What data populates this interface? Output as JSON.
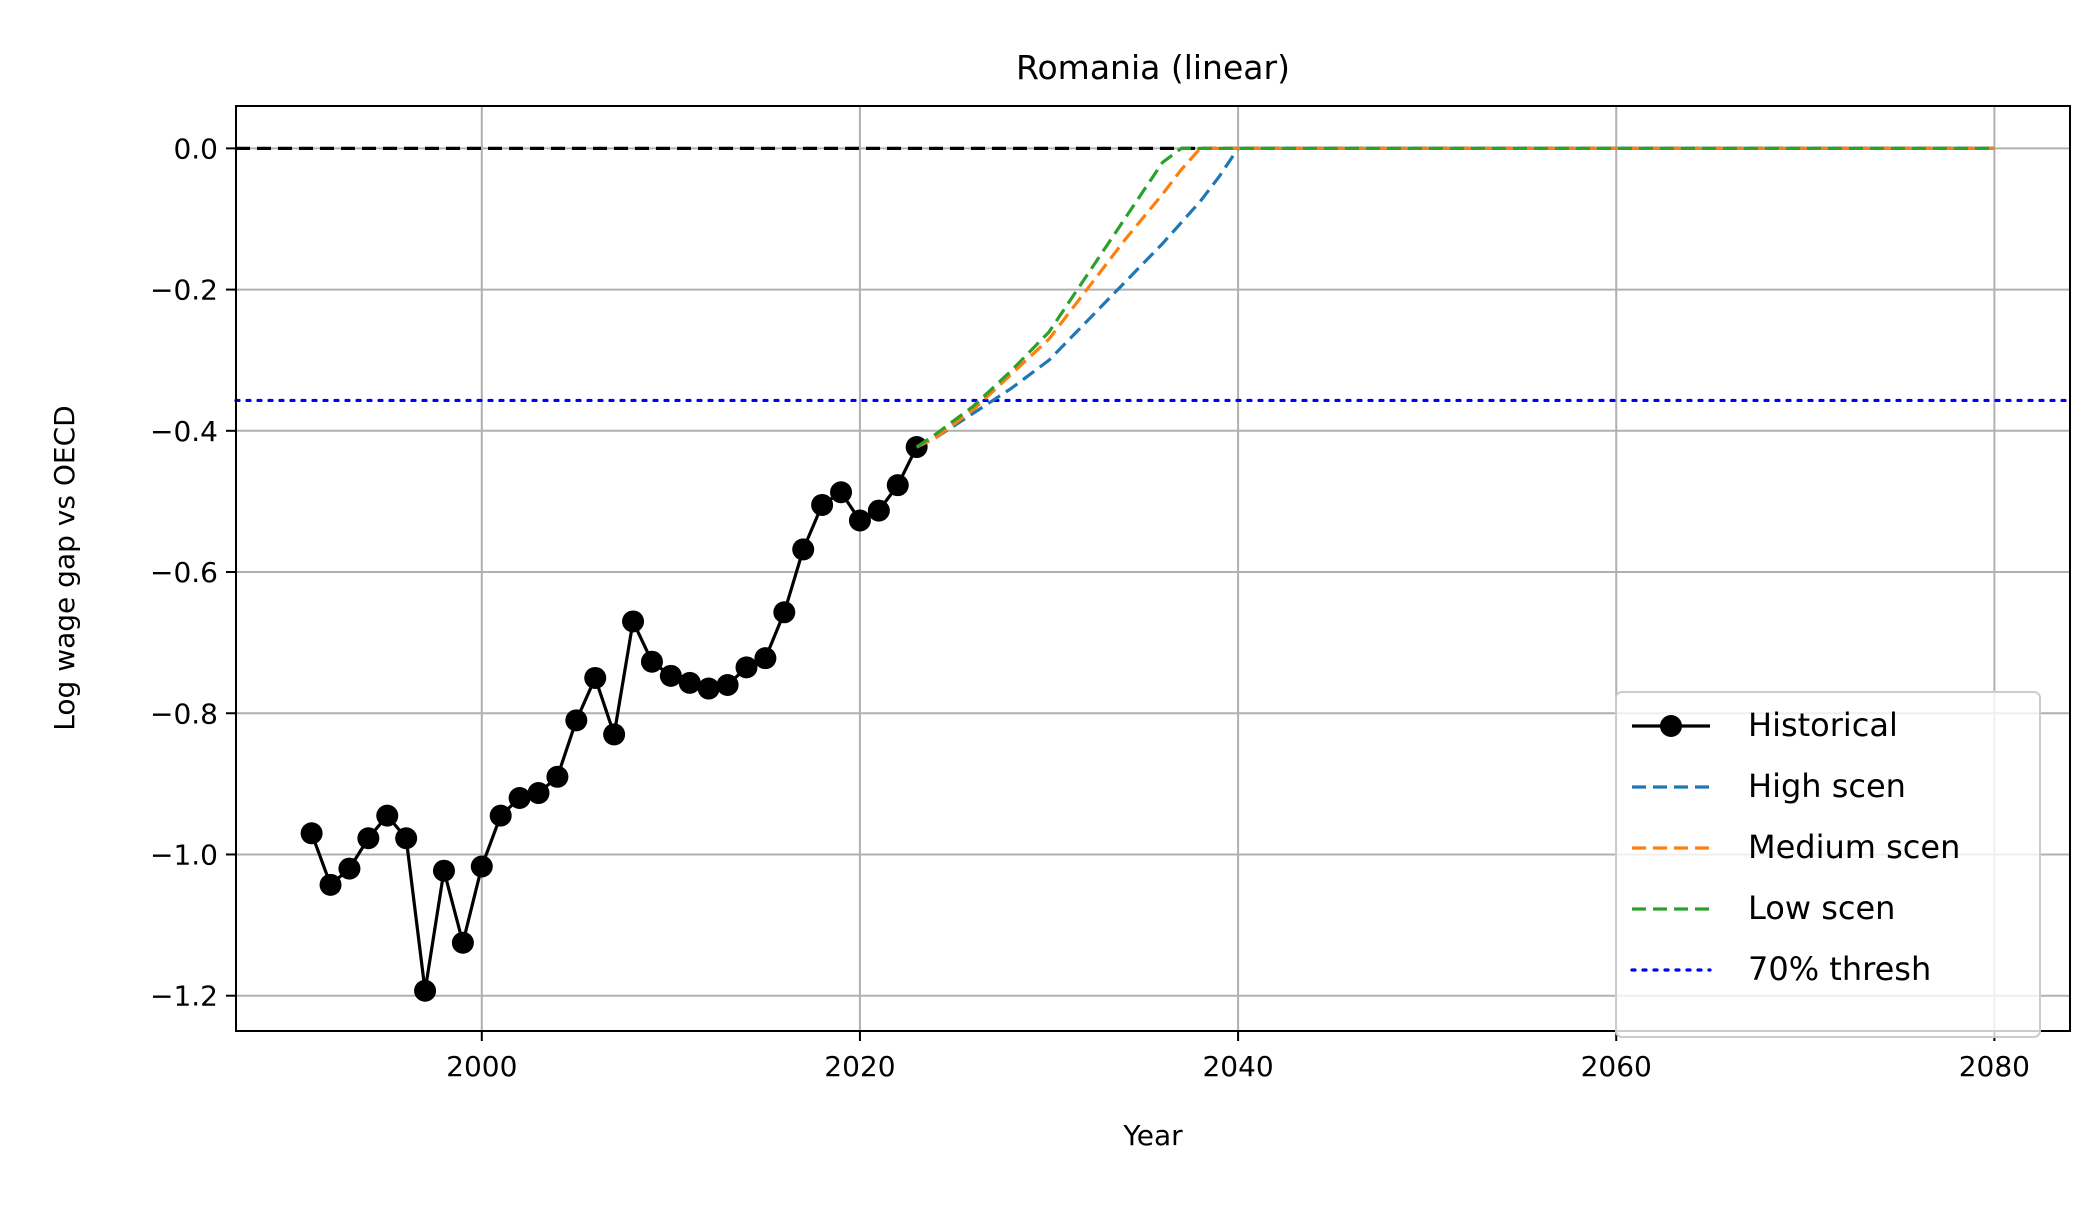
{
  "chart_data": {
    "type": "line",
    "title": "Romania (linear)",
    "xlabel": "Year",
    "ylabel": "Log wage gap vs OECD",
    "xlim": [
      1987,
      2084
    ],
    "ylim": [
      -1.25,
      0.06
    ],
    "x_ticks": [
      {
        "value": 2000,
        "label": "2000"
      },
      {
        "value": 2020,
        "label": "2020"
      },
      {
        "value": 2040,
        "label": "2040"
      },
      {
        "value": 2060,
        "label": "2060"
      },
      {
        "value": 2080,
        "label": "2080"
      }
    ],
    "y_ticks": [
      {
        "value": 0.0,
        "label": "0.0"
      },
      {
        "value": -0.2,
        "label": "−0.2"
      },
      {
        "value": -0.4,
        "label": "−0.4"
      },
      {
        "value": -0.6,
        "label": "−0.6"
      },
      {
        "value": -0.8,
        "label": "−0.8"
      },
      {
        "value": -1.0,
        "label": "−1.0"
      },
      {
        "value": -1.2,
        "label": "−1.2"
      }
    ],
    "grid": true,
    "legend_position": "lower-right",
    "reference_lines": [
      {
        "kind": "target",
        "y": 0.0,
        "color": "#000000",
        "dash": "dashed",
        "x_range": [
          1987,
          2080
        ]
      },
      {
        "name": "70% thresh",
        "y": -0.357,
        "color": "#0000ff",
        "dash": "dotted"
      }
    ],
    "series": [
      {
        "name": "Historical",
        "color": "#000000",
        "style": "solid",
        "marker": "circle",
        "x": [
          1991,
          1992,
          1993,
          1994,
          1995,
          1996,
          1997,
          1998,
          1999,
          2000,
          2001,
          2002,
          2003,
          2004,
          2005,
          2006,
          2007,
          2008,
          2009,
          2010,
          2011,
          2012,
          2013,
          2014,
          2015,
          2016,
          2017,
          2018,
          2019,
          2020,
          2021,
          2022,
          2023
        ],
        "y": [
          -0.97,
          -1.043,
          -1.02,
          -0.977,
          -0.945,
          -0.977,
          -1.193,
          -1.023,
          -1.125,
          -1.017,
          -0.945,
          -0.92,
          -0.913,
          -0.89,
          -0.81,
          -0.75,
          -0.83,
          -0.67,
          -0.727,
          -0.747,
          -0.757,
          -0.765,
          -0.76,
          -0.735,
          -0.722,
          -0.657,
          -0.568,
          -0.505,
          -0.487,
          -0.527,
          -0.513,
          -0.477,
          -0.423
        ]
      },
      {
        "name": "High scen",
        "color": "#1f77b4",
        "style": "dashed",
        "x": [
          2023,
          2024,
          2026,
          2028,
          2030,
          2032,
          2034,
          2036,
          2038,
          2039,
          2040,
          2050,
          2060,
          2070,
          2080
        ],
        "y": [
          -0.423,
          -0.41,
          -0.375,
          -0.34,
          -0.3,
          -0.245,
          -0.19,
          -0.135,
          -0.075,
          -0.04,
          0.0,
          0.0,
          0.0,
          0.0,
          0.0
        ]
      },
      {
        "name": "Medium scen",
        "color": "#ff7f0e",
        "style": "dashed",
        "x": [
          2023,
          2024,
          2026,
          2028,
          2030,
          2032,
          2034,
          2036,
          2037,
          2038,
          2040,
          2050,
          2060,
          2070,
          2080
        ],
        "y": [
          -0.423,
          -0.41,
          -0.37,
          -0.32,
          -0.27,
          -0.2,
          -0.13,
          -0.065,
          -0.03,
          0.0,
          0.0,
          0.0,
          0.0,
          0.0,
          0.0
        ]
      },
      {
        "name": "Low scen",
        "color": "#2ca02c",
        "style": "dashed",
        "x": [
          2023,
          2024,
          2026,
          2028,
          2030,
          2032,
          2034,
          2036,
          2037,
          2040,
          2050,
          2060,
          2070,
          2080
        ],
        "y": [
          -0.423,
          -0.405,
          -0.365,
          -0.315,
          -0.26,
          -0.18,
          -0.1,
          -0.02,
          0.0,
          0.0,
          0.0,
          0.0,
          0.0,
          0.0
        ]
      }
    ]
  }
}
